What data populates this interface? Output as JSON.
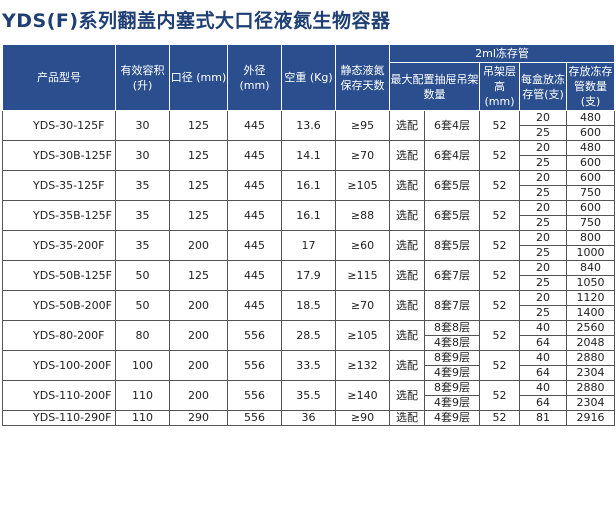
{
  "title": "YDS(F)系列翻盖内塞式大口径液氮生物容器",
  "headers": {
    "model": "产品型号",
    "volume": "有效容积 (升)",
    "neck": "口径 (mm)",
    "outer": "外径 (mm)",
    "weight": "空重 (Kg)",
    "hold": "静态液氮保存天数",
    "group": "2ml冻存管",
    "max_config": "最大配置抽屉吊架数量",
    "rack_height": "吊架层高(mm)",
    "per_box": "每盒放冻存管(支)",
    "capacity": "存放冻存管数量(支)"
  },
  "products": [
    {
      "model": "YDS-30-125F",
      "volume": "30",
      "neck": "125",
      "outer": "445",
      "weight": "13.6",
      "hold": "≥95",
      "opt": "选配",
      "racks": [
        "6套4层"
      ],
      "height": "52",
      "splits": [
        {
          "per": "20",
          "cap": "480"
        },
        {
          "per": "25",
          "cap": "600"
        }
      ]
    },
    {
      "model": "YDS-30B-125F",
      "volume": "30",
      "neck": "125",
      "outer": "445",
      "weight": "14.1",
      "hold": "≥70",
      "opt": "选配",
      "racks": [
        "6套4层"
      ],
      "height": "52",
      "splits": [
        {
          "per": "20",
          "cap": "480"
        },
        {
          "per": "25",
          "cap": "600"
        }
      ]
    },
    {
      "model": "YDS-35-125F",
      "volume": "35",
      "neck": "125",
      "outer": "445",
      "weight": "16.1",
      "hold": "≥105",
      "opt": "选配",
      "racks": [
        "6套5层"
      ],
      "height": "52",
      "splits": [
        {
          "per": "20",
          "cap": "600"
        },
        {
          "per": "25",
          "cap": "750"
        }
      ]
    },
    {
      "model": "YDS-35B-125F",
      "volume": "35",
      "neck": "125",
      "outer": "445",
      "weight": "16.1",
      "hold": "≥88",
      "opt": "选配",
      "racks": [
        "6套5层"
      ],
      "height": "52",
      "splits": [
        {
          "per": "20",
          "cap": "600"
        },
        {
          "per": "25",
          "cap": "750"
        }
      ]
    },
    {
      "model": "YDS-35-200F",
      "volume": "35",
      "neck": "200",
      "outer": "445",
      "weight": "17",
      "hold": "≥60",
      "opt": "选配",
      "racks": [
        "8套5层"
      ],
      "height": "52",
      "splits": [
        {
          "per": "20",
          "cap": "800"
        },
        {
          "per": "25",
          "cap": "1000"
        }
      ]
    },
    {
      "model": "YDS-50B-125F",
      "volume": "50",
      "neck": "125",
      "outer": "445",
      "weight": "17.9",
      "hold": "≥115",
      "opt": "选配",
      "racks": [
        "6套7层"
      ],
      "height": "52",
      "splits": [
        {
          "per": "20",
          "cap": "840"
        },
        {
          "per": "25",
          "cap": "1050"
        }
      ]
    },
    {
      "model": "YDS-50B-200F",
      "volume": "50",
      "neck": "200",
      "outer": "445",
      "weight": "18.5",
      "hold": "≥70",
      "opt": "选配",
      "racks": [
        "8套7层"
      ],
      "height": "52",
      "splits": [
        {
          "per": "20",
          "cap": "1120"
        },
        {
          "per": "25",
          "cap": "1400"
        }
      ]
    },
    {
      "model": "YDS-80-200F",
      "volume": "80",
      "neck": "200",
      "outer": "556",
      "weight": "28.5",
      "hold": "≥105",
      "opt": "选配",
      "racks": [
        "8套8层",
        "4套8层"
      ],
      "height": "52",
      "splits": [
        {
          "per": "40",
          "cap": "2560"
        },
        {
          "per": "64",
          "cap": "2048"
        }
      ]
    },
    {
      "model": "YDS-100-200F",
      "volume": "100",
      "neck": "200",
      "outer": "556",
      "weight": "33.5",
      "hold": "≥132",
      "opt": "选配",
      "racks": [
        "8套9层",
        "4套9层"
      ],
      "height": "52",
      "splits": [
        {
          "per": "40",
          "cap": "2880"
        },
        {
          "per": "64",
          "cap": "2304"
        }
      ]
    },
    {
      "model": "YDS-110-200F",
      "volume": "110",
      "neck": "200",
      "outer": "556",
      "weight": "35.5",
      "hold": "≥140",
      "opt": "选配",
      "racks": [
        "8套9层",
        "4套9层"
      ],
      "height": "52",
      "splits": [
        {
          "per": "40",
          "cap": "2880"
        },
        {
          "per": "64",
          "cap": "2304"
        }
      ]
    },
    {
      "model": "YDS-110-290F",
      "volume": "110",
      "neck": "290",
      "outer": "556",
      "weight": "36",
      "hold": "≥90",
      "opt": "选配",
      "racks": [
        "4套9层"
      ],
      "height": "52",
      "splits": [
        {
          "per": "81",
          "cap": "2916"
        }
      ]
    }
  ]
}
